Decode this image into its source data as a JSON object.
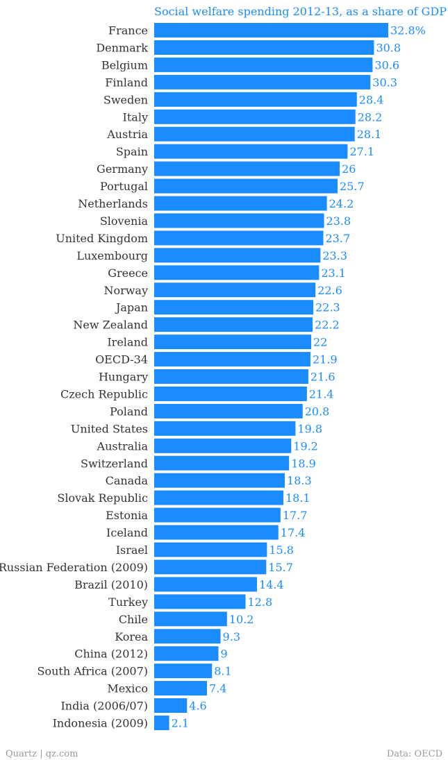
{
  "footer": {
    "source_left": "Quartz | qz.com",
    "source_right": "Data: OECD"
  },
  "colors": {
    "bar": "#1a8cff",
    "title": "#1a8cff",
    "value_label": "#1a8cff",
    "category_label": "#333333",
    "footer": "#999999"
  },
  "chart_data": {
    "type": "bar",
    "orientation": "horizontal",
    "title": "Social welfare spending 2012-13, as a share of GDP",
    "xlabel": "",
    "ylabel": "",
    "xlim": [
      0,
      32.8
    ],
    "grid": false,
    "legend": "none",
    "categories": [
      "France",
      "Denmark",
      "Belgium",
      "Finland",
      "Sweden",
      "Italy",
      "Austria",
      "Spain",
      "Germany",
      "Portugal",
      "Netherlands",
      "Slovenia",
      "United Kingdom",
      "Luxembourg",
      "Greece",
      "Norway",
      "Japan",
      "New Zealand",
      "Ireland",
      "OECD-34",
      "Hungary",
      "Czech Republic",
      "Poland",
      "United States",
      "Australia",
      "Switzerland",
      "Canada",
      "Slovak Republic",
      "Estonia",
      "Iceland",
      "Israel",
      "Russian Federation (2009)",
      "Brazil (2010)",
      "Turkey",
      "Chile",
      "Korea",
      "China (2012)",
      "South Africa (2007)",
      "Mexico",
      "India (2006/07)",
      "Indonesia (2009)"
    ],
    "values": [
      32.8,
      30.8,
      30.6,
      30.3,
      28.4,
      28.2,
      28.1,
      27.1,
      26,
      25.7,
      24.2,
      23.8,
      23.7,
      23.3,
      23.1,
      22.6,
      22.3,
      22.2,
      22,
      21.9,
      21.6,
      21.4,
      20.8,
      19.8,
      19.2,
      18.9,
      18.3,
      18.1,
      17.7,
      17.4,
      15.8,
      15.7,
      14.4,
      12.8,
      10.2,
      9.3,
      9,
      8.1,
      7.4,
      4.6,
      2.1
    ],
    "value_labels": [
      "32.8%",
      "30.8",
      "30.6",
      "30.3",
      "28.4",
      "28.2",
      "28.1",
      "27.1",
      "26",
      "25.7",
      "24.2",
      "23.8",
      "23.7",
      "23.3",
      "23.1",
      "22.6",
      "22.3",
      "22.2",
      "22",
      "21.9",
      "21.6",
      "21.4",
      "20.8",
      "19.8",
      "19.2",
      "18.9",
      "18.3",
      "18.1",
      "17.7",
      "17.4",
      "15.8",
      "15.7",
      "14.4",
      "12.8",
      "10.2",
      "9.3",
      "9",
      "8.1",
      "7.4",
      "4.6",
      "2.1"
    ]
  }
}
